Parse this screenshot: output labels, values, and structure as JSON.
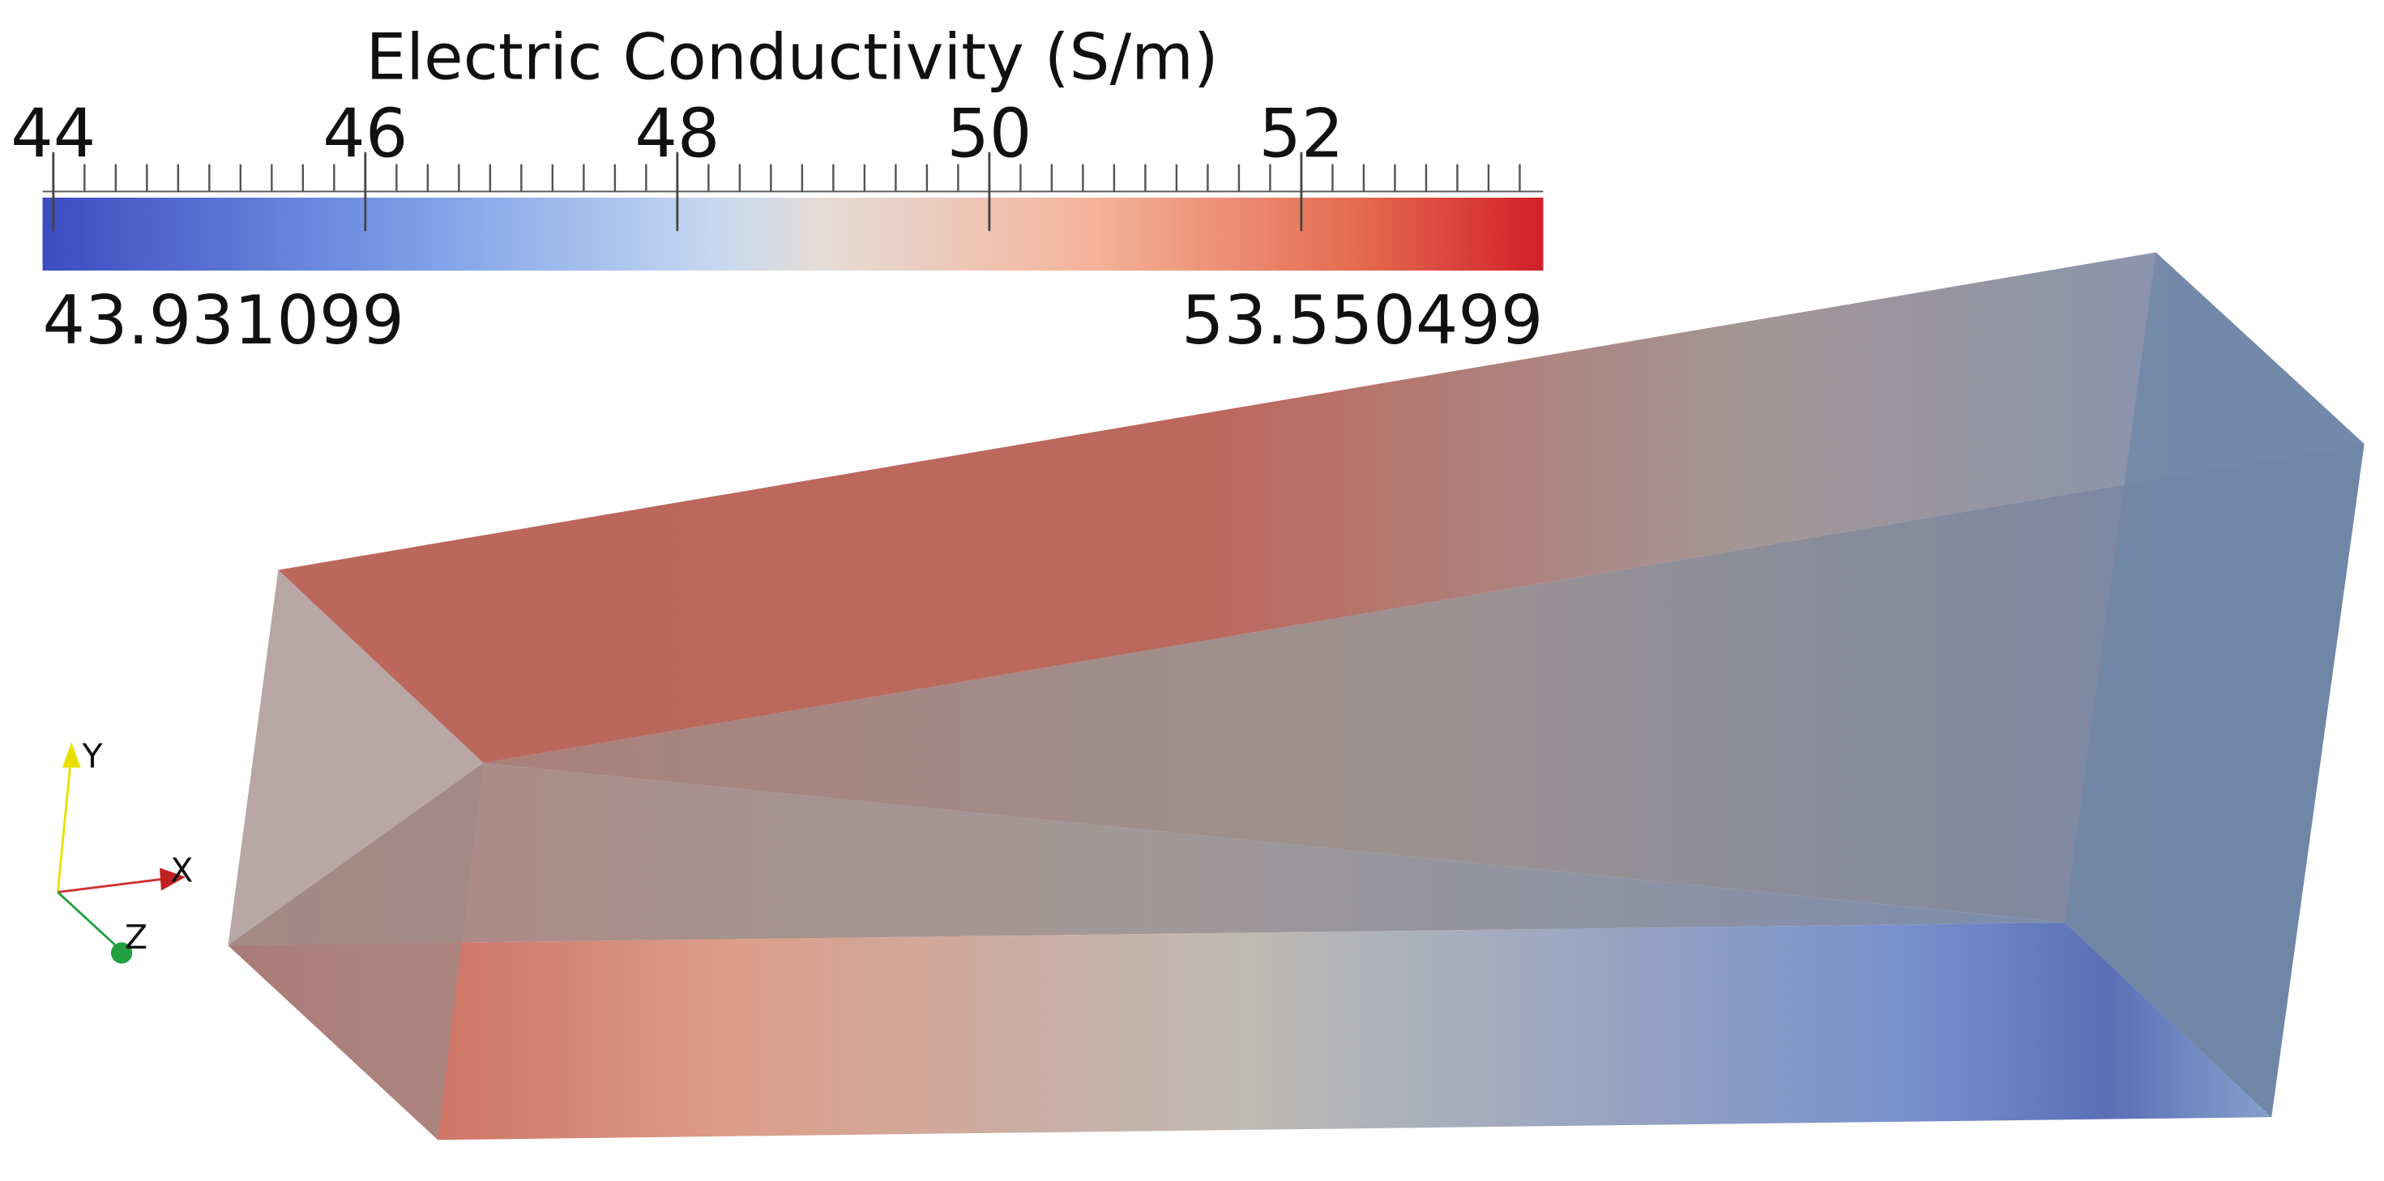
{
  "colorbar": {
    "title": "Electric Conductivity (S/m)",
    "range": [
      43.931099,
      53.550499
    ],
    "ticks": [
      44,
      46,
      48,
      50,
      52
    ],
    "minor_ticks": [
      44.2,
      44.4,
      44.6,
      44.8,
      45,
      45.2,
      45.4,
      45.6,
      45.8,
      46.2,
      46.4,
      46.6,
      46.8,
      47,
      47.2,
      47.4,
      47.6,
      47.8,
      48.2,
      48.4,
      48.6,
      48.8,
      49,
      49.2,
      49.4,
      49.6,
      49.8,
      50.2,
      50.4,
      50.6,
      50.8,
      51,
      51.2,
      51.4,
      51.6,
      51.8,
      52.2,
      52.4,
      52.6,
      52.8,
      53,
      53.2,
      53.4
    ]
  },
  "axes": {
    "x": "X",
    "y": "Y",
    "z": "Z"
  }
}
